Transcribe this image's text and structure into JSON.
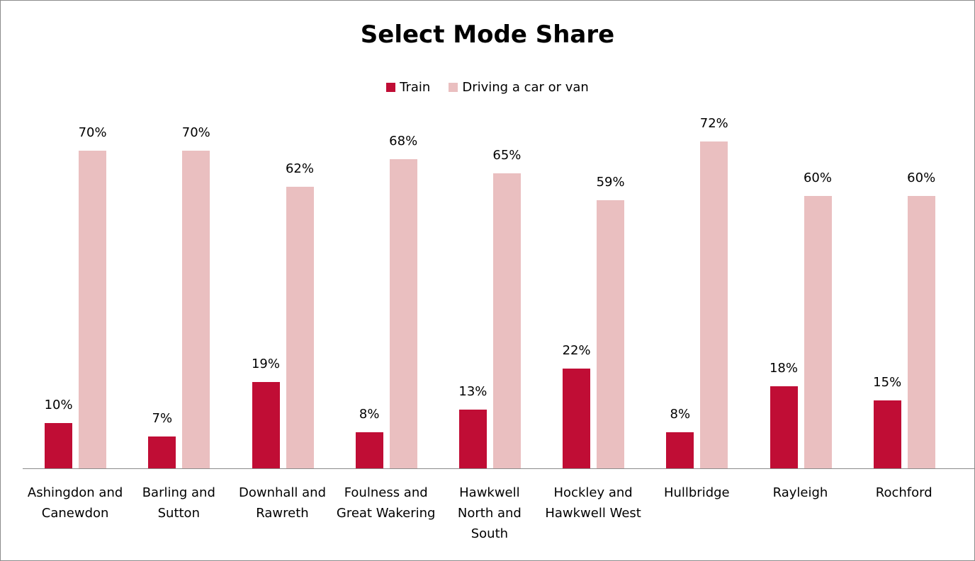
{
  "chart_data": {
    "type": "bar",
    "title": "Select Mode Share",
    "categories": [
      "Ashingdon and Canewdon",
      "Barling and Sutton",
      "Downhall and Rawreth",
      "Foulness and Great Wakering",
      "Hawkwell North and South",
      "Hockley and Hawkwell West",
      "Hullbridge",
      "Rayleigh",
      "Rochford"
    ],
    "series": [
      {
        "name": "Train",
        "color": "#c00d35",
        "values": [
          10,
          7,
          19,
          8,
          13,
          22,
          8,
          18,
          15
        ],
        "value_labels": [
          "10%",
          "7%",
          "19%",
          "8%",
          "13%",
          "22%",
          "8%",
          "18%",
          "15%"
        ]
      },
      {
        "name": "Driving a car or van",
        "color": "#eabfc0",
        "values": [
          70,
          70,
          62,
          68,
          65,
          59,
          72,
          60,
          60
        ],
        "value_labels": [
          "70%",
          "70%",
          "62%",
          "68%",
          "65%",
          "59%",
          "72%",
          "60%",
          "60%"
        ]
      }
    ],
    "legend": "top"
  }
}
